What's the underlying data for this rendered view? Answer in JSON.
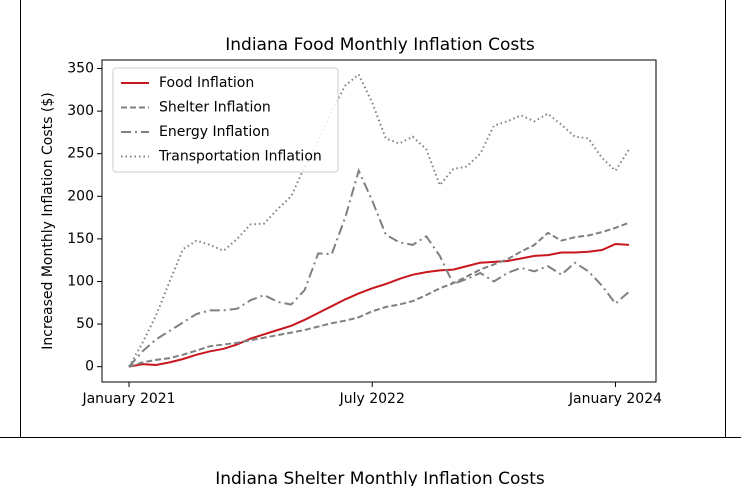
{
  "chart_data": [
    {
      "type": "line",
      "title": "Indiana Food Monthly Inflation Costs",
      "ylabel": "Increased Monthly Inflation Costs ($)",
      "x": [
        "2021-01",
        "2021-02",
        "2021-03",
        "2021-04",
        "2021-05",
        "2021-06",
        "2021-07",
        "2021-08",
        "2021-09",
        "2021-10",
        "2021-11",
        "2021-12",
        "2022-01",
        "2022-02",
        "2022-03",
        "2022-04",
        "2022-05",
        "2022-06",
        "2022-07",
        "2022-08",
        "2022-09",
        "2022-10",
        "2022-11",
        "2022-12",
        "2023-01",
        "2023-02",
        "2023-03",
        "2023-04",
        "2023-05",
        "2023-06",
        "2023-07",
        "2023-08",
        "2023-09",
        "2023-10",
        "2023-11",
        "2023-12",
        "2024-01",
        "2024-02"
      ],
      "series": [
        {
          "name": "Food Inflation",
          "color": "#c8161d",
          "dash": "solid",
          "values": [
            0,
            3,
            2,
            5,
            9,
            14,
            18,
            21,
            26,
            33,
            38,
            43,
            48,
            55,
            63,
            71,
            79,
            86,
            92,
            97,
            103,
            108,
            111,
            113,
            114,
            118,
            122,
            123,
            124,
            127,
            130,
            131,
            134,
            134,
            135,
            137,
            144,
            143
          ]
        },
        {
          "name": "Shelter Inflation",
          "color": "#808080",
          "dash": "dashed",
          "values": [
            0,
            5,
            8,
            10,
            14,
            19,
            24,
            26,
            28,
            31,
            34,
            37,
            40,
            43,
            47,
            51,
            54,
            58,
            65,
            70,
            73,
            77,
            84,
            92,
            98,
            106,
            114,
            120,
            126,
            135,
            143,
            157,
            148,
            152,
            154,
            158,
            163,
            169
          ]
        },
        {
          "name": "Energy Inflation",
          "color": "#808080",
          "dash": "dashdot",
          "values": [
            0,
            18,
            32,
            42,
            52,
            62,
            66,
            66,
            68,
            78,
            84,
            76,
            73,
            90,
            133,
            132,
            175,
            230,
            195,
            155,
            146,
            143,
            153,
            130,
            97,
            103,
            110,
            100,
            110,
            116,
            112,
            118,
            108,
            122,
            112,
            95,
            74,
            88
          ]
        },
        {
          "name": "Transportation Inflation",
          "color": "#808080",
          "dash": "dotted",
          "values": [
            0,
            28,
            60,
            100,
            138,
            148,
            143,
            136,
            150,
            167,
            168,
            185,
            200,
            235,
            265,
            300,
            330,
            343,
            310,
            268,
            262,
            270,
            255,
            213,
            232,
            235,
            250,
            283,
            288,
            295,
            288,
            297,
            284,
            270,
            268,
            245,
            230,
            255
          ]
        }
      ],
      "xlim": [
        "2020-11",
        "2024-04"
      ],
      "xticks": [
        {
          "value": "2021-01",
          "label": "January 2021"
        },
        {
          "value": "2022-07",
          "label": "July 2022"
        },
        {
          "value": "2024-01",
          "label": "January 2024"
        }
      ],
      "ylim": [
        -18,
        360
      ],
      "yticks": [
        0,
        50,
        100,
        150,
        200,
        250,
        300,
        350
      ],
      "legend": "upper left",
      "grid": false
    },
    {
      "type": "line",
      "title": "Indiana Shelter Monthly Inflation Costs"
    }
  ]
}
